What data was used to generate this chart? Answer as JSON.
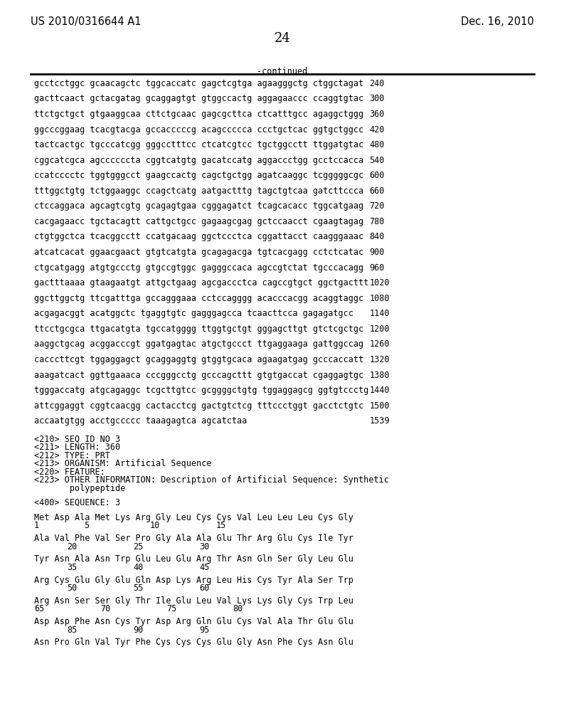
{
  "header_left": "US 2010/0316644 A1",
  "header_right": "Dec. 16, 2010",
  "page_number": "24",
  "continued_label": "-continued",
  "background_color": "#ffffff",
  "text_color": "#000000",
  "font_size_header": 10.5,
  "font_size_body": 8.5,
  "font_size_page": 13,
  "sequence_lines": [
    [
      "gcctcctggc gcaacagctc tggcaccatc gagctcgtga agaagggctg ctggctagat",
      "240"
    ],
    [
      "gacttcaact gctacgatag gcaggagtgt gtggccactg aggagaaccc ccaggtgtac",
      "300"
    ],
    [
      "ttctgctgct gtgaaggcaa cttctgcaac gagcgcttca ctcatttgcc agaggctggg",
      "360"
    ],
    [
      "ggcccggaag tcacgtacga gccacccccg acagccccca ccctgctcac ggtgctggcc",
      "420"
    ],
    [
      "tactcactgc tgcccatcgg gggcctttcc ctcatcgtcc tgctggcctt ttggatgtac",
      "480"
    ],
    [
      "cggcatcgca agccccccta cggtcatgtg gacatccatg aggaccctgg gcctccacca",
      "540"
    ],
    [
      "ccatcccctc tggtgggcct gaagccactg cagctgctgg agatcaaggc tcgggggcgc",
      "600"
    ],
    [
      "tttggctgtg tctggaaggc ccagctcatg aatgactttg tagctgtcaa gatcttccca",
      "660"
    ],
    [
      "ctccaggaca agcagtcgtg gcagagtgaa cgggagatct tcagcacacc tggcatgaag",
      "720"
    ],
    [
      "cacgagaacc tgctacagtt cattgctgcc gagaagcgag gctccaacct cgaagtagag",
      "780"
    ],
    [
      "ctgtggctca tcacggcctt ccatgacaag ggctccctca cggattacct caagggaaac",
      "840"
    ],
    [
      "atcatcacat ggaacgaact gtgtcatgta gcagagacga tgtcacgagg cctctcatac",
      "900"
    ],
    [
      "ctgcatgagg atgtgccctg gtgccgtggc gagggccaca agccgtctat tgcccacagg",
      "960"
    ],
    [
      "gactttaaaa gtaagaatgt attgctgaag agcgaccctca cagccgtgct ggctgacttt",
      "1020"
    ],
    [
      "ggcttggctg ttcgatttga gccagggaaa cctccagggg acacccacgg acaggtaggc",
      "1080"
    ],
    [
      "acgagacggt acatggctc tgaggtgtc gagggagcca tcaacttcca gagagatgcc",
      "1140"
    ],
    [
      "ttcctgcgca ttgacatgta tgccatgggg ttggtgctgt gggagcttgt gtctcgctgc",
      "1200"
    ],
    [
      "aaggctgcag acggacccgt ggatgagtac atgctgccct ttgaggaaga gattggccag",
      "1260"
    ],
    [
      "cacccttcgt tggaggagct gcaggaggtg gtggtgcaca agaagatgag gcccaccatt",
      "1320"
    ],
    [
      "aaagatcact ggttgaaaca cccgggcctg gcccagcttt gtgtgaccat cgaggagtgc",
      "1380"
    ],
    [
      "tgggaccatg atgcagaggc tcgcttgtcc gcggggctgtg tggaggagcg ggtgtccctg",
      "1440"
    ],
    [
      "attcggaggt cggtcaacgg cactacctcg gactgtctcg tttccctggt gacctctgtc",
      "1500"
    ],
    [
      "accaatgtgg acctgccccc taaagagtca agcatctaa",
      "1539"
    ]
  ],
  "metadata_lines": [
    "<210> SEQ ID NO 3",
    "<211> LENGTH: 360",
    "<212> TYPE: PRT",
    "<213> ORGANISM: Artificial Sequence",
    "<220> FEATURE:",
    "<223> OTHER INFORMATION: Description of Artificial Sequence: Synthetic",
    "       polypeptide"
  ],
  "sequence_label": "<400> SEQUENCE: 3",
  "prot_sequences": [
    "Met Asp Ala Met Lys Arg Gly Leu Cys Cys Val Leu Leu Leu Cys Gly",
    "Ala Val Phe Val Ser Pro Gly Ala Ala Glu Thr Arg Glu Cys Ile Tyr",
    "Tyr Asn Ala Asn Trp Glu Leu Glu Arg Thr Asn Gln Ser Gly Leu Glu",
    "Arg Cys Glu Gly Glu Gln Asp Lys Arg Leu His Cys Tyr Ala Ser Trp",
    "Arg Asn Ser Ser Gly Thr Ile Glu Leu Val Lys Lys Gly Cys Trp Leu",
    "Asp Asp Phe Asn Cys Tyr Asp Arg Gln Glu Cys Val Ala Thr Glu Glu",
    "Asn Pro Gln Val Tyr Phe Cys Cys Cys Glu Gly Asn Phe Cys Asn Glu"
  ],
  "prot_nums": [
    [
      "1",
      "5",
      "10",
      "15"
    ],
    [
      "20",
      "25",
      "30"
    ],
    [
      "35",
      "40",
      "45"
    ],
    [
      "50",
      "55",
      "60"
    ],
    [
      "65",
      "70",
      "75",
      "80"
    ],
    [
      "85",
      "90",
      "95"
    ],
    []
  ],
  "prot_num_x": [
    [
      62,
      152,
      272,
      392
    ],
    [
      122,
      242,
      362
    ],
    [
      122,
      242,
      362
    ],
    [
      122,
      242,
      362
    ],
    [
      62,
      182,
      302,
      422
    ],
    [
      122,
      242,
      362
    ],
    []
  ]
}
